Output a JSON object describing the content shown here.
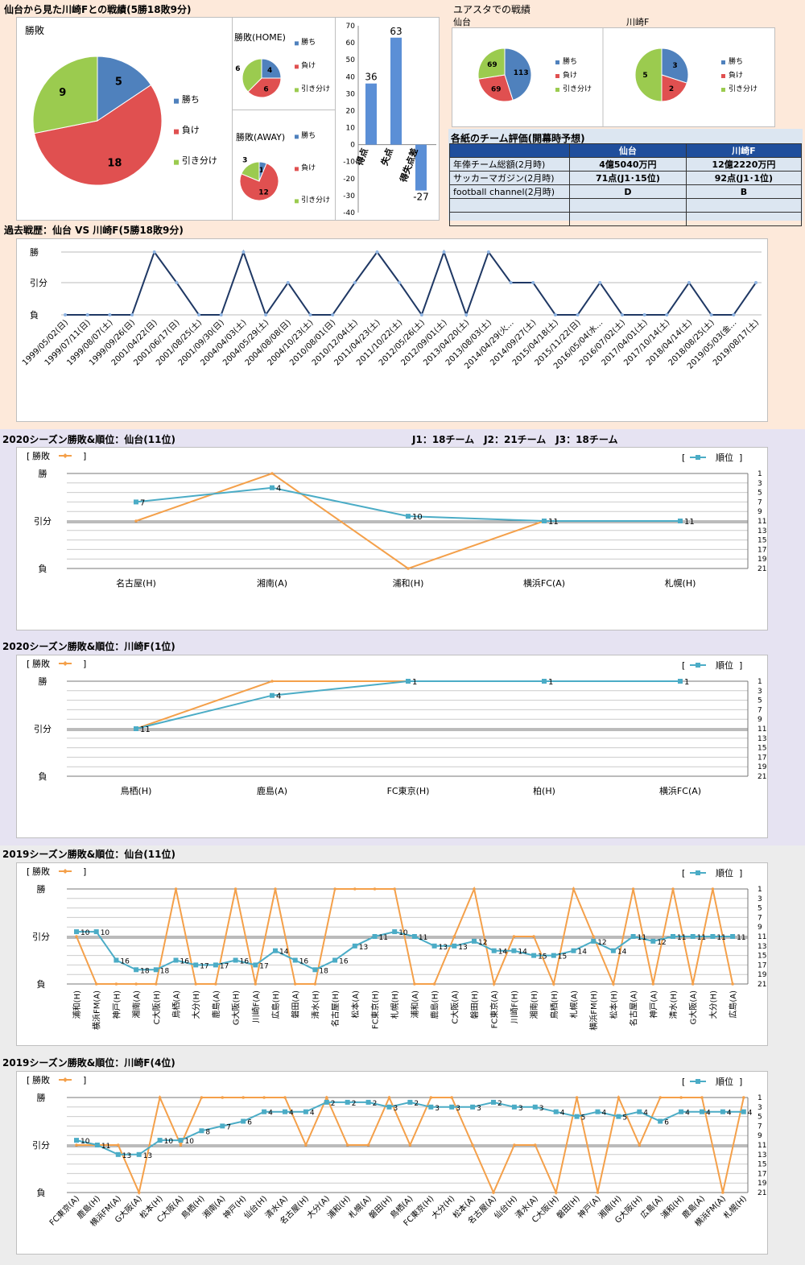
{
  "header": {
    "title": "仙台から見た川崎Fとの戦績(5勝18敗9分)",
    "ustadium_title": "ユアスタでの戦績",
    "eval_title": "各紙のチーム評価(開幕時予想)",
    "history_title": "過去戦歴：仙台 VS 川崎F(5勝18敗9分)",
    "s2020_sendai_title": "2020シーズン勝敗&順位：仙台(11位)",
    "league_info": "J1：18チーム　J2：21チーム　J3：18チーム",
    "s2020_kawasaki_title": "2020シーズン勝敗&順位：川崎F(1位)",
    "s2019_sendai_title": "2019シーズン勝敗&順位：仙台(11位)",
    "s2019_kawasaki_title": "2019シーズン勝敗&順位：川崎F(4位)"
  },
  "colors": {
    "win": "#4f81bd",
    "loss": "#e05050",
    "draw": "#9bcb4f",
    "result": "#f4a04a",
    "rank": "#4bacc6",
    "history": "#1f3864",
    "section1_bg": "#fde9da",
    "section2_bg": "#e6e3f2",
    "section3_bg": "#ececec"
  },
  "legend": {
    "win": "勝ち",
    "loss": "負け",
    "draw": "引き分け",
    "result": "勝敗",
    "rank": "順位",
    "bracket_open": "[",
    "bracket_close": "]"
  },
  "result_labels": [
    "勝",
    "引分",
    "負"
  ],
  "eval_table": {
    "headers": [
      "",
      "仙台",
      "川崎F"
    ],
    "rows": [
      [
        "年俸チーム総額(2月時)",
        "4億5040万円",
        "12億2220万円"
      ],
      [
        "サッカーマガジン(2月時)",
        "71点(J1･15位)",
        "92点(J1･1位)"
      ],
      [
        "football channel(2月時)",
        "D",
        "B"
      ],
      [
        "",
        "",
        ""
      ],
      [
        "",
        "",
        ""
      ]
    ]
  },
  "chart_data": [
    {
      "id": "pie_total",
      "type": "pie",
      "title": "勝敗",
      "labels": [
        "勝ち",
        "負け",
        "引き分け"
      ],
      "values": [
        5,
        18,
        9
      ]
    },
    {
      "id": "pie_home",
      "type": "pie",
      "title": "勝敗(HOME)",
      "labels": [
        "勝ち",
        "負け",
        "引き分け"
      ],
      "values": [
        4,
        6,
        6
      ]
    },
    {
      "id": "pie_away",
      "type": "pie",
      "title": "勝敗(AWAY)",
      "labels": [
        "勝ち",
        "負け",
        "引き分け"
      ],
      "values": [
        1,
        12,
        3
      ]
    },
    {
      "id": "goals_bar",
      "type": "bar",
      "categories": [
        "得点",
        "失点",
        "得失点差"
      ],
      "values": [
        36,
        63,
        -27
      ],
      "ylim": [
        -40,
        70
      ],
      "yticks": [
        70,
        60,
        50,
        40,
        30,
        20,
        10,
        0,
        -10,
        -20,
        -30,
        -40
      ]
    },
    {
      "id": "pie_ustadium_sendai",
      "type": "pie",
      "title": "仙台",
      "labels": [
        "勝ち",
        "負け",
        "引き分け"
      ],
      "values": [
        113,
        69,
        69
      ]
    },
    {
      "id": "pie_ustadium_kawasaki",
      "type": "pie",
      "title": "川崎F",
      "labels": [
        "勝ち",
        "負け",
        "引き分け"
      ],
      "values": [
        3,
        2,
        5
      ]
    },
    {
      "id": "history",
      "type": "line",
      "categories": [
        "1999/05/02(日)",
        "1999/07/11(日)",
        "1999/08/07(土)",
        "1999/09/26(日)",
        "2001/04/22(日)",
        "2001/06/17(日)",
        "2001/08/25(土)",
        "2001/09/30(日)",
        "2004/04/03(土)",
        "2004/05/29(土)",
        "2004/08/08(日)",
        "2004/10/23(土)",
        "2010/08/01(日)",
        "2010/12/04(土)",
        "2011/04/23(土)",
        "2011/10/22(土)",
        "2012/05/26(土)",
        "2012/09/01(土)",
        "2013/04/20(土)",
        "2013/08/03(土)",
        "2014/04/29(火…",
        "2014/09/27(土)",
        "2015/04/18(土)",
        "2015/11/22(日)",
        "2016/05/04(水…",
        "2016/07/02(土)",
        "2017/04/01(土)",
        "2017/10/14(土)",
        "2018/04/14(土)",
        "2018/08/25(土)",
        "2019/05/03(金…",
        "2019/08/17(土)"
      ],
      "results": [
        "負",
        "負",
        "負",
        "負",
        "勝",
        "引分",
        "負",
        "負",
        "勝",
        "負",
        "引分",
        "負",
        "負",
        "引分",
        "勝",
        "引分",
        "負",
        "勝",
        "負",
        "勝",
        "引分",
        "引分",
        "負",
        "負",
        "引分",
        "負",
        "負",
        "負",
        "引分",
        "負",
        "負",
        "引分"
      ]
    },
    {
      "id": "s2020_sendai",
      "type": "line",
      "categories": [
        "名古屋(H)",
        "湘南(A)",
        "浦和(H)",
        "横浜FC(A)",
        "札幌(H)"
      ],
      "results": [
        "引分",
        "勝",
        "負",
        "引分",
        "引分"
      ],
      "ranks": [
        7,
        4,
        10,
        11,
        11
      ],
      "rank_range": [
        1,
        21
      ],
      "rank_ticks": [
        1,
        3,
        5,
        7,
        9,
        11,
        13,
        15,
        17,
        19,
        21
      ]
    },
    {
      "id": "s2020_kawasaki",
      "type": "line",
      "categories": [
        "鳥栖(H)",
        "鹿島(A)",
        "FC東京(H)",
        "柏(H)",
        "横浜FC(A)"
      ],
      "results": [
        "引分",
        "勝",
        "勝",
        "勝",
        "勝"
      ],
      "ranks": [
        11,
        4,
        1,
        1,
        1
      ],
      "rank_range": [
        1,
        21
      ],
      "rank_ticks": [
        1,
        3,
        5,
        7,
        9,
        11,
        13,
        15,
        17,
        19,
        21
      ]
    },
    {
      "id": "s2019_sendai",
      "type": "line",
      "categories": [
        "浦和(H)",
        "横浜FM(A)",
        "神戸(H)",
        "湘南(A)",
        "C大阪(H)",
        "鳥栖(A)",
        "大分(H)",
        "鹿島(A)",
        "G大阪(H)",
        "川崎F(A)",
        "広島(H)",
        "磐田(A)",
        "清水(H)",
        "名古屋(H)",
        "松本(A)",
        "FC東京(H)",
        "札幌(H)",
        "浦和(A)",
        "鹿島(H)",
        "C大阪(A)",
        "磐田(H)",
        "FC東京(A)",
        "川崎F(H)",
        "湘南(H)",
        "鳥栖(H)",
        "札幌(A)",
        "横浜FM(H)",
        "松本(H)",
        "名古屋(A)",
        "神戸(A)",
        "清水(H)",
        "G大阪(A)",
        "大分(H)",
        "広島(A)"
      ],
      "results": [
        "引分",
        "負",
        "負",
        "負",
        "負",
        "勝",
        "負",
        "負",
        "勝",
        "負",
        "勝",
        "負",
        "負",
        "勝",
        "勝",
        "勝",
        "勝",
        "負",
        "負",
        "引分",
        "勝",
        "負",
        "引分",
        "引分",
        "負",
        "勝",
        "引分",
        "負",
        "勝",
        "負",
        "勝",
        "負",
        "勝",
        "負"
      ],
      "ranks": [
        10,
        10,
        16,
        18,
        18,
        16,
        17,
        17,
        16,
        17,
        14,
        16,
        18,
        16,
        13,
        11,
        10,
        11,
        13,
        13,
        12,
        14,
        14,
        15,
        15,
        14,
        12,
        14,
        11,
        12,
        11,
        11,
        11,
        11
      ],
      "rank_range": [
        1,
        21
      ],
      "rank_ticks": [
        1,
        3,
        5,
        7,
        9,
        11,
        13,
        15,
        17,
        19,
        21
      ]
    },
    {
      "id": "s2019_kawasaki",
      "type": "line",
      "categories": [
        "FC東京(A)",
        "鹿島(H)",
        "横浜FM(A)",
        "G大阪(A)",
        "松本(H)",
        "C大阪(A)",
        "鳥栖(H)",
        "湘南(A)",
        "神戸(H)",
        "仙台(H)",
        "清水(A)",
        "名古屋(H)",
        "大分(A)",
        "浦和(H)",
        "札幌(A)",
        "磐田(H)",
        "鳥栖(A)",
        "FC東京(H)",
        "大分(H)",
        "松本(A)",
        "名古屋(A)",
        "仙台(H)",
        "清水(A)",
        "C大阪(H)",
        "磐田(H)",
        "神戸(A)",
        "湘南(H)",
        "G大阪(H)",
        "広島(A)",
        "浦和(H)",
        "鹿島(A)",
        "横浜FM(A)",
        "札幌(H)"
      ],
      "results": [
        "引分",
        "引分",
        "引分",
        "負",
        "勝",
        "引分",
        "勝",
        "勝",
        "勝",
        "勝",
        "勝",
        "引分",
        "勝",
        "引分",
        "引分",
        "勝",
        "引分",
        "勝",
        "勝",
        "引分",
        "負",
        "引分",
        "引分",
        "負",
        "勝",
        "負",
        "勝",
        "引分",
        "勝",
        "勝",
        "勝",
        "負",
        "勝"
      ],
      "ranks": [
        10,
        11,
        13,
        13,
        10,
        10,
        8,
        7,
        6,
        4,
        4,
        4,
        2,
        2,
        2,
        3,
        2,
        3,
        3,
        3,
        2,
        3,
        3,
        4,
        5,
        4,
        5,
        4,
        6,
        4,
        4,
        4,
        4
      ],
      "rank_range": [
        1,
        21
      ],
      "rank_ticks": [
        1,
        3,
        5,
        7,
        9,
        11,
        13,
        15,
        17,
        19,
        21
      ]
    }
  ]
}
